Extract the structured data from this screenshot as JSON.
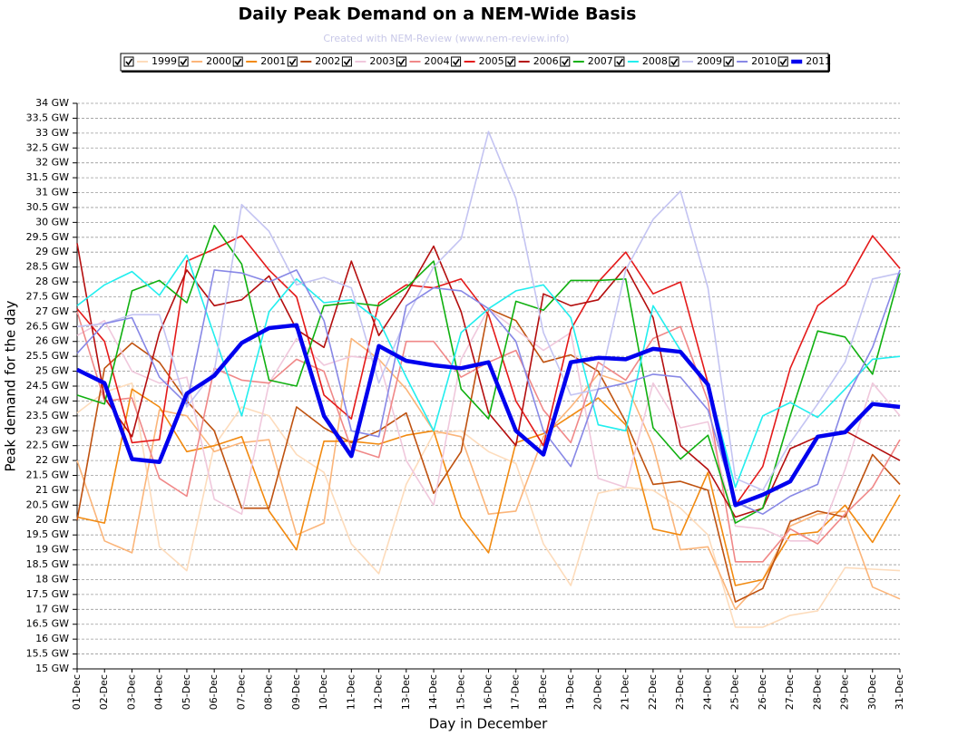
{
  "chart_data": {
    "type": "line",
    "title": "Daily Peak Demand on a NEM-Wide Basis",
    "subtitle": "Created with NEM-Review (www.nem-review.info)",
    "x_label": "Day in December",
    "y_label": "Peak demand for the day",
    "grid": true,
    "categories": [
      "01-Dec",
      "02-Dec",
      "03-Dec",
      "04-Dec",
      "05-Dec",
      "06-Dec",
      "07-Dec",
      "08-Dec",
      "09-Dec",
      "10-Dec",
      "11-Dec",
      "12-Dec",
      "13-Dec",
      "14-Dec",
      "15-Dec",
      "16-Dec",
      "17-Dec",
      "18-Dec",
      "19-Dec",
      "20-Dec",
      "21-Dec",
      "22-Dec",
      "23-Dec",
      "24-Dec",
      "25-Dec",
      "26-Dec",
      "27-Dec",
      "28-Dec",
      "29-Dec",
      "30-Dec",
      "31-Dec"
    ],
    "ylim": [
      15,
      34
    ],
    "yticks": [
      {
        "value": 15,
        "label": "15 GW"
      },
      {
        "value": 15.5,
        "label": "15.5 GW"
      },
      {
        "value": 16,
        "label": "16 GW"
      },
      {
        "value": 16.5,
        "label": "16.5 GW"
      },
      {
        "value": 17,
        "label": "17 GW"
      },
      {
        "value": 17.5,
        "label": "17.5 GW"
      },
      {
        "value": 18,
        "label": "18 GW"
      },
      {
        "value": 18.5,
        "label": "18.5 GW"
      },
      {
        "value": 19,
        "label": "19 GW"
      },
      {
        "value": 19.5,
        "label": "19.5 GW"
      },
      {
        "value": 20,
        "label": "20 GW"
      },
      {
        "value": 20.5,
        "label": "20.5 GW"
      },
      {
        "value": 21,
        "label": "21 GW"
      },
      {
        "value": 21.5,
        "label": "21.5 GW"
      },
      {
        "value": 22,
        "label": "22 GW"
      },
      {
        "value": 22.5,
        "label": "22.5 GW"
      },
      {
        "value": 23,
        "label": "23 GW"
      },
      {
        "value": 23.5,
        "label": "23.5 GW"
      },
      {
        "value": 24,
        "label": "24 GW"
      },
      {
        "value": 24.5,
        "label": "24.5 GW"
      },
      {
        "value": 25,
        "label": "25 GW"
      },
      {
        "value": 25.5,
        "label": "25.5 GW"
      },
      {
        "value": 26,
        "label": "26 GW"
      },
      {
        "value": 26.5,
        "label": "26.5 GW"
      },
      {
        "value": 27,
        "label": "27 GW"
      },
      {
        "value": 27.5,
        "label": "27.5 GW"
      },
      {
        "value": 28,
        "label": "28 GW"
      },
      {
        "value": 28.5,
        "label": "28.5 GW"
      },
      {
        "value": 29,
        "label": "29 GW"
      },
      {
        "value": 29.5,
        "label": "29.5 GW"
      },
      {
        "value": 30,
        "label": "30 GW"
      },
      {
        "value": 30.5,
        "label": "30.5 GW"
      },
      {
        "value": 31,
        "label": "31 GW"
      },
      {
        "value": 31.5,
        "label": "31.5 GW"
      },
      {
        "value": 32,
        "label": "32 GW"
      },
      {
        "value": 32.5,
        "label": "32.5 GW"
      },
      {
        "value": 33,
        "label": "33 GW"
      },
      {
        "value": 33.5,
        "label": "33.5 GW"
      },
      {
        "value": 34,
        "label": "34 GW"
      }
    ],
    "series": [
      {
        "name": "1999",
        "color": "#fddcbc",
        "values": [
          23.6,
          24.3,
          24.6,
          19.1,
          18.3,
          22.5,
          23.8,
          23.5,
          22.2,
          21.6,
          19.2,
          18.2,
          21.2,
          22.9,
          23.0,
          22.3,
          21.9,
          19.2,
          17.8,
          20.9,
          21.1,
          21.0,
          20.4,
          19.5,
          16.4,
          16.4,
          16.8,
          16.95,
          18.4,
          18.35,
          18.3
        ]
      },
      {
        "name": "2000",
        "color": "#fbb57a",
        "values": [
          22.0,
          19.3,
          18.9,
          23.7,
          23.5,
          22.3,
          22.6,
          22.7,
          19.5,
          19.9,
          26.1,
          25.4,
          24.4,
          23.0,
          22.8,
          20.2,
          20.3,
          22.8,
          23.8,
          24.9,
          24.6,
          22.5,
          19.0,
          19.1,
          17.0,
          18.0,
          19.8,
          20.2,
          20.3,
          17.75,
          17.35
        ]
      },
      {
        "name": "2001",
        "color": "#f28a10",
        "values": [
          20.1,
          19.9,
          24.4,
          23.8,
          22.3,
          22.5,
          22.8,
          20.3,
          19.0,
          22.65,
          22.65,
          22.55,
          22.85,
          23.0,
          20.1,
          18.9,
          22.6,
          22.9,
          23.5,
          24.1,
          23.2,
          19.7,
          19.5,
          21.6,
          17.8,
          18.0,
          19.5,
          19.6,
          20.5,
          19.25,
          20.85
        ]
      },
      {
        "name": "2002",
        "color": "#bf5210",
        "values": [
          20.0,
          25.1,
          25.95,
          25.3,
          24.0,
          23.0,
          20.4,
          20.4,
          23.8,
          23.1,
          22.6,
          23.0,
          23.6,
          20.9,
          22.3,
          27.1,
          26.7,
          25.3,
          25.55,
          25.0,
          23.3,
          21.2,
          21.3,
          21.0,
          17.25,
          17.7,
          19.95,
          20.3,
          20.1,
          22.2,
          21.2
        ]
      },
      {
        "name": "2003",
        "color": "#f0c8dc",
        "values": [
          26.2,
          26.7,
          25.0,
          24.6,
          24.8,
          20.7,
          20.2,
          24.6,
          26.1,
          25.2,
          25.5,
          25.4,
          22.0,
          20.5,
          25.4,
          27.1,
          26.4,
          25.7,
          26.3,
          21.4,
          21.1,
          24.6,
          23.1,
          23.3,
          19.8,
          19.7,
          19.3,
          19.3,
          21.7,
          24.6,
          23.5
        ]
      },
      {
        "name": "2004",
        "color": "#f08888",
        "values": [
          27.0,
          24.0,
          24.1,
          21.4,
          20.8,
          25.1,
          24.7,
          24.6,
          25.4,
          25.0,
          22.4,
          22.1,
          26.0,
          26.0,
          24.8,
          25.3,
          25.7,
          23.7,
          22.6,
          25.3,
          24.7,
          26.1,
          26.5,
          24.0,
          18.6,
          18.6,
          19.7,
          19.2,
          20.2,
          21.1,
          22.7
        ]
      },
      {
        "name": "2005",
        "color": "#e41a1a",
        "values": [
          27.1,
          26.0,
          22.6,
          22.7,
          28.7,
          29.1,
          29.55,
          28.4,
          27.5,
          24.2,
          23.4,
          27.3,
          27.9,
          27.8,
          28.1,
          26.9,
          24.0,
          22.5,
          26.4,
          28.0,
          29.0,
          27.6,
          28.0,
          24.6,
          20.5,
          21.8,
          25.1,
          27.2,
          27.9,
          29.55,
          28.45
        ]
      },
      {
        "name": "2006",
        "color": "#b40e0e",
        "values": [
          29.3,
          24.1,
          22.8,
          26.3,
          28.4,
          27.2,
          27.4,
          28.2,
          26.4,
          25.8,
          28.7,
          26.2,
          27.6,
          29.2,
          27.0,
          23.6,
          22.5,
          27.6,
          27.2,
          27.4,
          28.5,
          26.8,
          22.5,
          21.7,
          20.1,
          20.4,
          22.4,
          22.8,
          23.0,
          22.5,
          22.0
        ]
      },
      {
        "name": "2007",
        "color": "#10b010",
        "values": [
          24.2,
          23.9,
          27.7,
          28.05,
          27.3,
          29.9,
          28.6,
          24.7,
          24.5,
          27.2,
          27.3,
          27.2,
          27.8,
          28.7,
          24.4,
          23.4,
          27.35,
          27.05,
          28.05,
          28.05,
          28.1,
          23.1,
          22.05,
          22.85,
          19.9,
          20.4,
          23.5,
          26.35,
          26.15,
          24.9,
          28.3
        ]
      },
      {
        "name": "2008",
        "color": "#22eeee",
        "values": [
          27.2,
          27.9,
          28.35,
          27.55,
          28.9,
          26.2,
          23.5,
          27.0,
          28.1,
          27.3,
          27.4,
          26.7,
          24.8,
          23.0,
          26.3,
          27.1,
          27.7,
          27.9,
          26.8,
          23.2,
          23.0,
          27.2,
          25.7,
          24.6,
          21.1,
          23.5,
          23.95,
          23.45,
          24.4,
          25.4,
          25.5
        ]
      },
      {
        "name": "2009",
        "color": "#c4c4f2",
        "values": [
          26.5,
          26.6,
          26.9,
          26.9,
          23.8,
          25.0,
          30.6,
          29.7,
          27.9,
          28.15,
          27.8,
          24.6,
          26.8,
          28.5,
          29.45,
          33.05,
          30.8,
          26.3,
          24.2,
          24.4,
          28.4,
          30.1,
          31.05,
          27.8,
          21.4,
          21.0,
          22.6,
          23.9,
          25.3,
          28.1,
          28.3
        ]
      },
      {
        "name": "2010",
        "color": "#8888e6",
        "values": [
          25.6,
          26.6,
          26.8,
          24.8,
          23.9,
          28.4,
          28.3,
          28.0,
          28.4,
          26.7,
          23.0,
          22.8,
          27.2,
          27.8,
          27.7,
          27.1,
          26.0,
          23.0,
          21.8,
          24.4,
          24.6,
          24.9,
          24.8,
          23.7,
          20.6,
          20.2,
          20.8,
          21.2,
          24.0,
          25.8,
          28.4
        ]
      },
      {
        "name": "2011",
        "color": "#0000ee",
        "values": [
          25.05,
          24.6,
          22.05,
          21.95,
          24.25,
          24.85,
          25.95,
          26.45,
          26.55,
          23.5,
          22.15,
          25.85,
          25.35,
          25.2,
          25.1,
          25.3,
          23.0,
          22.2,
          25.3,
          25.45,
          25.4,
          25.75,
          25.65,
          24.55,
          20.5,
          20.85,
          21.3,
          22.8,
          22.95,
          23.9,
          23.8
        ]
      }
    ]
  }
}
